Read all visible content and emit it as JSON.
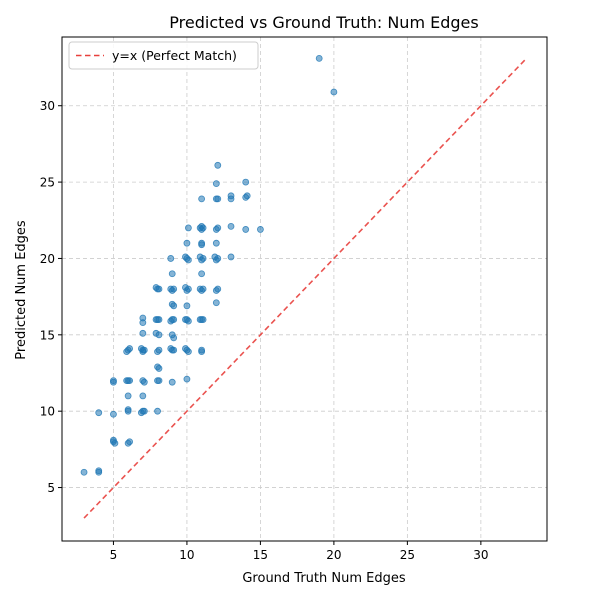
{
  "chart_data": {
    "type": "scatter",
    "title": "Predicted vs Ground Truth: Num Edges",
    "xlabel": "Ground Truth Num Edges",
    "ylabel": "Predicted Num Edges",
    "xlim": [
      1.5,
      34.5
    ],
    "ylim": [
      1.5,
      34.5
    ],
    "x_ticks": [
      5,
      10,
      15,
      20,
      25,
      30
    ],
    "y_ticks": [
      5,
      10,
      15,
      20,
      25,
      30
    ],
    "grid": true,
    "legend_position": "top-left",
    "colors": {
      "points": "#1f77b4",
      "reference_line": "#e8403c",
      "grid": "#cccccc"
    },
    "reference_line": {
      "label": "y=x (Perfect Match)",
      "from": [
        3,
        3
      ],
      "to": [
        33,
        33
      ],
      "style": "dashed"
    },
    "series": [
      {
        "values": [
          [
            3,
            6
          ],
          [
            4,
            6
          ],
          [
            4,
            6.1
          ],
          [
            4,
            9.9
          ],
          [
            5,
            8.1
          ],
          [
            5,
            8
          ],
          [
            5.1,
            7.9
          ],
          [
            5,
            9.8
          ],
          [
            5,
            12
          ],
          [
            5,
            11.9
          ],
          [
            6,
            7.9
          ],
          [
            6.1,
            8
          ],
          [
            6,
            10
          ],
          [
            6,
            10.1
          ],
          [
            6,
            11
          ],
          [
            6,
            12
          ],
          [
            6.1,
            12
          ],
          [
            5.9,
            12
          ],
          [
            6,
            14
          ],
          [
            6.1,
            14.1
          ],
          [
            5.9,
            13.9
          ],
          [
            7,
            10
          ],
          [
            7.1,
            10
          ],
          [
            6.9,
            9.9
          ],
          [
            7,
            11
          ],
          [
            7,
            12
          ],
          [
            7.1,
            11.9
          ],
          [
            7,
            14
          ],
          [
            7.1,
            14
          ],
          [
            6.9,
            14.1
          ],
          [
            7,
            13.9
          ],
          [
            7,
            15.1
          ],
          [
            7,
            15.8
          ],
          [
            7,
            16.1
          ],
          [
            8,
            10
          ],
          [
            8,
            12
          ],
          [
            8.1,
            12
          ],
          [
            8,
            12.9
          ],
          [
            8.1,
            12.8
          ],
          [
            8,
            13.9
          ],
          [
            8.1,
            14
          ],
          [
            7.9,
            15.1
          ],
          [
            8.1,
            15
          ],
          [
            8,
            16
          ],
          [
            8.1,
            16
          ],
          [
            7.9,
            16
          ],
          [
            8,
            18
          ],
          [
            8.1,
            18
          ],
          [
            7.9,
            18.1
          ],
          [
            9,
            11.9
          ],
          [
            9,
            14
          ],
          [
            9.1,
            14
          ],
          [
            8.9,
            14.1
          ],
          [
            9,
            15
          ],
          [
            9.1,
            14.8
          ],
          [
            9,
            16
          ],
          [
            9.1,
            16
          ],
          [
            8.9,
            15.9
          ],
          [
            9,
            17
          ],
          [
            9.1,
            16.9
          ],
          [
            9,
            17.9
          ],
          [
            9.1,
            18
          ],
          [
            8.9,
            18
          ],
          [
            9,
            19
          ],
          [
            8.9,
            20
          ],
          [
            10,
            12.1
          ],
          [
            10,
            14
          ],
          [
            10.1,
            13.9
          ],
          [
            9.9,
            14.1
          ],
          [
            10,
            16
          ],
          [
            10.1,
            15.9
          ],
          [
            9.9,
            16
          ],
          [
            10,
            16.9
          ],
          [
            10,
            17.9
          ],
          [
            10.1,
            18
          ],
          [
            9.9,
            18.1
          ],
          [
            10,
            20
          ],
          [
            10.1,
            19.9
          ],
          [
            9.9,
            20.1
          ],
          [
            10,
            21
          ],
          [
            10.1,
            22
          ],
          [
            11,
            13.9
          ],
          [
            11,
            14
          ],
          [
            11,
            16
          ],
          [
            11.1,
            16
          ],
          [
            10.9,
            16
          ],
          [
            11,
            17.9
          ],
          [
            11.1,
            18
          ],
          [
            10.9,
            18
          ],
          [
            11,
            19
          ],
          [
            11,
            19.9
          ],
          [
            11.1,
            20
          ],
          [
            10.9,
            20.1
          ],
          [
            11,
            20.9
          ],
          [
            11,
            21
          ],
          [
            11,
            21.9
          ],
          [
            11.1,
            22
          ],
          [
            10.9,
            22
          ],
          [
            11,
            22.1
          ],
          [
            11,
            23.9
          ],
          [
            12,
            17.1
          ],
          [
            12,
            17.9
          ],
          [
            12.1,
            18
          ],
          [
            12,
            19.9
          ],
          [
            12.1,
            20
          ],
          [
            11.9,
            20.1
          ],
          [
            12,
            21
          ],
          [
            12,
            21.9
          ],
          [
            12.1,
            22
          ],
          [
            12,
            23.9
          ],
          [
            12.1,
            23.9
          ],
          [
            12,
            24.9
          ],
          [
            12.1,
            26.1
          ],
          [
            13,
            20.1
          ],
          [
            13,
            22.1
          ],
          [
            13,
            23.9
          ],
          [
            13,
            24.1
          ],
          [
            14,
            21.9
          ],
          [
            14,
            24
          ],
          [
            14.1,
            24.1
          ],
          [
            14,
            25
          ],
          [
            15,
            21.9
          ],
          [
            19,
            33.1
          ],
          [
            20,
            30.9
          ]
        ]
      }
    ]
  }
}
